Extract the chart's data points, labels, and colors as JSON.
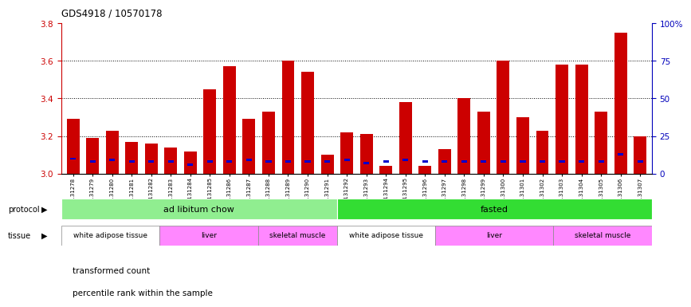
{
  "title": "GDS4918 / 10570178",
  "samples": [
    "GSM1131278",
    "GSM1131279",
    "GSM1131280",
    "GSM1131281",
    "GSM1131282",
    "GSM1131283",
    "GSM1131284",
    "GSM1131285",
    "GSM1131286",
    "GSM1131287",
    "GSM1131288",
    "GSM1131289",
    "GSM1131290",
    "GSM1131291",
    "GSM1131292",
    "GSM1131293",
    "GSM1131294",
    "GSM1131295",
    "GSM1131296",
    "GSM1131297",
    "GSM1131298",
    "GSM1131299",
    "GSM1131300",
    "GSM1131301",
    "GSM1131302",
    "GSM1131303",
    "GSM1131304",
    "GSM1131305",
    "GSM1131306",
    "GSM1131307"
  ],
  "red_values": [
    3.29,
    3.19,
    3.23,
    3.17,
    3.16,
    3.14,
    3.12,
    3.45,
    3.57,
    3.29,
    3.33,
    3.6,
    3.54,
    3.1,
    3.22,
    3.21,
    3.04,
    3.38,
    3.04,
    3.13,
    3.4,
    3.33,
    3.6,
    3.3,
    3.23,
    3.58,
    3.58,
    3.33,
    3.75,
    3.2
  ],
  "blue_pct": [
    10,
    8,
    9,
    8,
    8,
    8,
    6,
    8,
    8,
    9,
    8,
    8,
    8,
    8,
    9,
    7,
    8,
    9,
    8,
    8,
    8,
    8,
    8,
    8,
    8,
    8,
    8,
    8,
    13,
    8
  ],
  "ylim_left": [
    3.0,
    3.8
  ],
  "ylim_right": [
    0,
    100
  ],
  "yticks_left": [
    3.0,
    3.2,
    3.4,
    3.6,
    3.8
  ],
  "yticks_right": [
    0,
    25,
    50,
    75,
    100
  ],
  "ytick_labels_right": [
    "0",
    "25",
    "50",
    "75",
    "100%"
  ],
  "grid_lines": [
    3.2,
    3.4,
    3.6
  ],
  "bar_width": 0.65,
  "protocol_groups": [
    {
      "label": "ad libitum chow",
      "start": 0,
      "end": 14,
      "color": "#90EE90"
    },
    {
      "label": "fasted",
      "start": 14,
      "end": 30,
      "color": "#33DD33"
    }
  ],
  "tissue_groups": [
    {
      "label": "white adipose tissue",
      "start": 0,
      "end": 5,
      "color": "#FFFFFF"
    },
    {
      "label": "liver",
      "start": 5,
      "end": 10,
      "color": "#FF88FF"
    },
    {
      "label": "skeletal muscle",
      "start": 10,
      "end": 14,
      "color": "#FF88FF"
    },
    {
      "label": "white adipose tissue",
      "start": 14,
      "end": 19,
      "color": "#FFFFFF"
    },
    {
      "label": "liver",
      "start": 19,
      "end": 25,
      "color": "#FF88FF"
    },
    {
      "label": "skeletal muscle",
      "start": 25,
      "end": 30,
      "color": "#FF88FF"
    }
  ],
  "red_color": "#CC0000",
  "blue_color": "#0000CC",
  "axis_color_left": "#CC0000",
  "axis_color_right": "#0000BB",
  "legend_labels": [
    "transformed count",
    "percentile rank within the sample"
  ]
}
